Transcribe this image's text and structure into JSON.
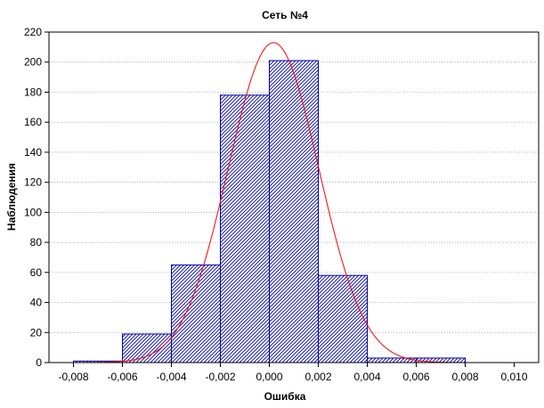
{
  "chart_data": {
    "type": "bar",
    "title": "Сеть №4",
    "xlabel": "Ошибка",
    "ylabel": "Наблюдения",
    "xlim": [
      -0.009,
      0.011
    ],
    "ylim": [
      0,
      220
    ],
    "x_ticks": [
      "-0,008",
      "-0,006",
      "-0,004",
      "-0,002",
      "0,000",
      "0,002",
      "0,004",
      "0,006",
      "0,008",
      "0,010"
    ],
    "x_tick_values": [
      -0.008,
      -0.006,
      -0.004,
      -0.002,
      0.0,
      0.002,
      0.004,
      0.006,
      0.008,
      0.01
    ],
    "y_ticks": [
      "0",
      "20",
      "40",
      "60",
      "80",
      "100",
      "120",
      "140",
      "160",
      "180",
      "200",
      "220"
    ],
    "y_tick_values": [
      0,
      20,
      40,
      60,
      80,
      100,
      120,
      140,
      160,
      180,
      200,
      220
    ],
    "grid": true,
    "series": [
      {
        "type": "histogram",
        "bin_width": 0.002,
        "bins": [
          {
            "x0": -0.008,
            "x1": -0.006,
            "count": 1
          },
          {
            "x0": -0.006,
            "x1": -0.004,
            "count": 19
          },
          {
            "x0": -0.004,
            "x1": -0.002,
            "count": 65
          },
          {
            "x0": -0.002,
            "x1": 0.0,
            "count": 178
          },
          {
            "x0": 0.0,
            "x1": 0.002,
            "count": 201
          },
          {
            "x0": 0.002,
            "x1": 0.004,
            "count": 58
          },
          {
            "x0": 0.004,
            "x1": 0.006,
            "count": 3
          },
          {
            "x0": 0.006,
            "x1": 0.008,
            "count": 3
          }
        ],
        "color": "#0000aa",
        "fill_pattern": "diagonal-hatch"
      },
      {
        "type": "line",
        "fit": "normal",
        "mean": 0.00017,
        "peak": 213,
        "std": 0.00185,
        "color": "#ff0000"
      }
    ]
  }
}
